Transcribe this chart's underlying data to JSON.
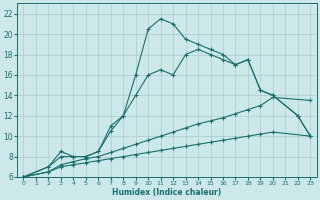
{
  "xlabel": "Humidex (Indice chaleur)",
  "bg_color": "#cce8e8",
  "line_color": "#1a6e6e",
  "grid_color": "#aacccc",
  "xlim": [
    -0.5,
    23.5
  ],
  "ylim": [
    6,
    23
  ],
  "yticks": [
    6,
    8,
    10,
    12,
    14,
    16,
    18,
    20,
    22
  ],
  "xticks": [
    0,
    1,
    2,
    3,
    4,
    5,
    6,
    7,
    8,
    9,
    10,
    11,
    12,
    13,
    14,
    15,
    16,
    17,
    18,
    19,
    20,
    21,
    22,
    23
  ],
  "series": [
    {
      "x": [
        0,
        2,
        3,
        4,
        5,
        6,
        7,
        8,
        9,
        10,
        11,
        12,
        13,
        14,
        15,
        16,
        17,
        18,
        19,
        20,
        23
      ],
      "y": [
        6,
        6.5,
        7,
        7.2,
        7.4,
        7.6,
        7.8,
        8.0,
        8.2,
        8.4,
        8.6,
        8.8,
        9.0,
        9.2,
        9.4,
        9.6,
        9.8,
        10.0,
        10.2,
        10.4,
        10.0
      ]
    },
    {
      "x": [
        0,
        2,
        3,
        4,
        5,
        6,
        7,
        8,
        9,
        10,
        11,
        12,
        13,
        14,
        15,
        16,
        17,
        18,
        19,
        20,
        23
      ],
      "y": [
        6,
        6.5,
        7.2,
        7.5,
        7.8,
        8.0,
        8.4,
        8.8,
        9.2,
        9.6,
        10.0,
        10.4,
        10.8,
        11.2,
        11.5,
        11.8,
        12.2,
        12.6,
        13.0,
        13.8,
        13.5
      ]
    },
    {
      "x": [
        0,
        2,
        3,
        4,
        5,
        6,
        7,
        8,
        9,
        10,
        11,
        12,
        13,
        14,
        15,
        16,
        17,
        18,
        19,
        20,
        22,
        23
      ],
      "y": [
        6,
        7,
        8,
        8,
        8,
        8.5,
        10.5,
        12,
        14,
        16,
        16.5,
        16,
        18,
        18.5,
        18,
        17.5,
        17,
        17.5,
        14.5,
        14,
        12,
        10
      ]
    },
    {
      "x": [
        0,
        2,
        3,
        4,
        5,
        6,
        7,
        8,
        9,
        10,
        11,
        12,
        13,
        14,
        15,
        16,
        17,
        18,
        19,
        20,
        22,
        23
      ],
      "y": [
        6,
        7,
        8.5,
        8,
        8,
        8.5,
        11,
        12,
        16,
        20.5,
        21.5,
        21,
        19.5,
        19,
        18.5,
        18,
        17,
        17.5,
        14.5,
        14,
        12,
        10
      ]
    }
  ]
}
